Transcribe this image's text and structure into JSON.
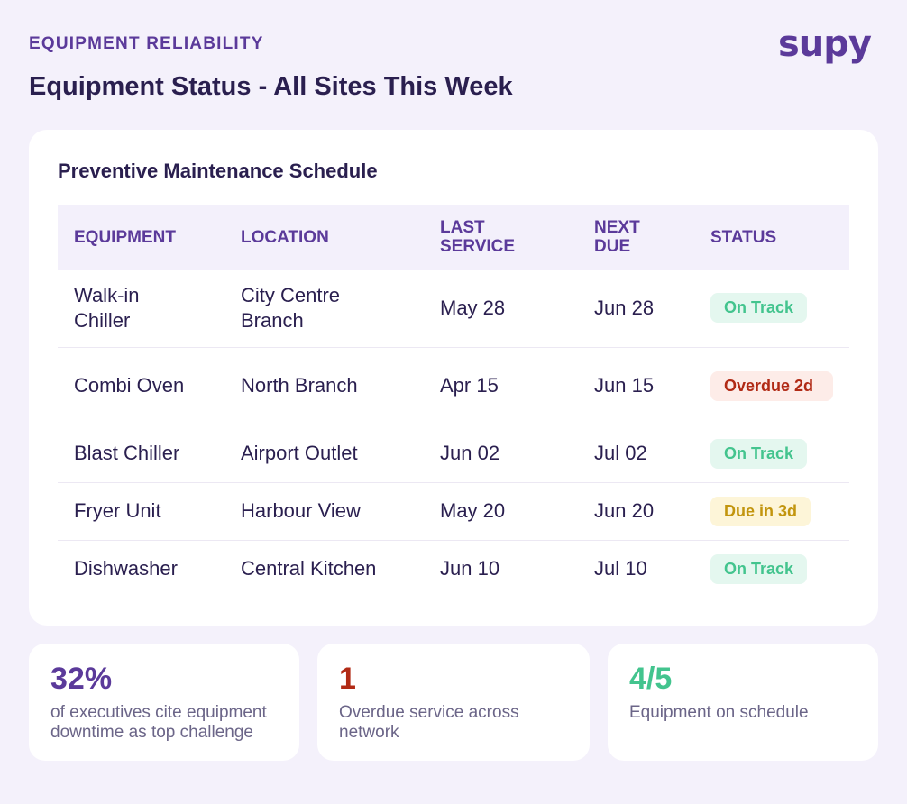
{
  "header": {
    "eyebrow": "EQUIPMENT RELIABILITY",
    "title": "Equipment Status - All Sites This Week",
    "logo": "supy"
  },
  "schedule": {
    "title": "Preventive Maintenance Schedule",
    "columns": [
      "EQUIPMENT",
      "LOCATION",
      "LAST SERVICE",
      "NEXT DUE",
      "STATUS"
    ],
    "rows": [
      {
        "equipment": "Walk-in Chiller",
        "location": "City Centre Branch",
        "last": "May 28",
        "next": "Jun 28",
        "status": "On Track",
        "status_type": "ok"
      },
      {
        "equipment": "Combi Oven",
        "location": "North Branch",
        "last": "Apr 15",
        "next": "Jun 15",
        "status": "Overdue 2d",
        "status_type": "bad"
      },
      {
        "equipment": "Blast Chiller",
        "location": "Airport Outlet",
        "last": "Jun 02",
        "next": "Jul 02",
        "status": "On Track",
        "status_type": "ok"
      },
      {
        "equipment": "Fryer Unit",
        "location": "Harbour View",
        "last": "May 20",
        "next": "Jun 20",
        "status": "Due in 3d",
        "status_type": "warn"
      },
      {
        "equipment": "Dishwasher",
        "location": "Central Kitchen",
        "last": "Jun 10",
        "next": "Jul 10",
        "status": "On Track",
        "status_type": "ok"
      }
    ]
  },
  "stats": [
    {
      "value": "32%",
      "label": "of executives cite equipment downtime as top challenge",
      "color": "#5b3a9a"
    },
    {
      "value": "1",
      "label": "Overdue service across network",
      "color": "#b12a15"
    },
    {
      "value": "4/5",
      "label": "Equipment on schedule",
      "color": "#43c48e"
    }
  ],
  "colors": {
    "accent": "#5b3a9a",
    "on_track": "#43c48e",
    "overdue": "#b12a15",
    "due_soon": "#c2950e",
    "background": "#f4f1fb"
  }
}
